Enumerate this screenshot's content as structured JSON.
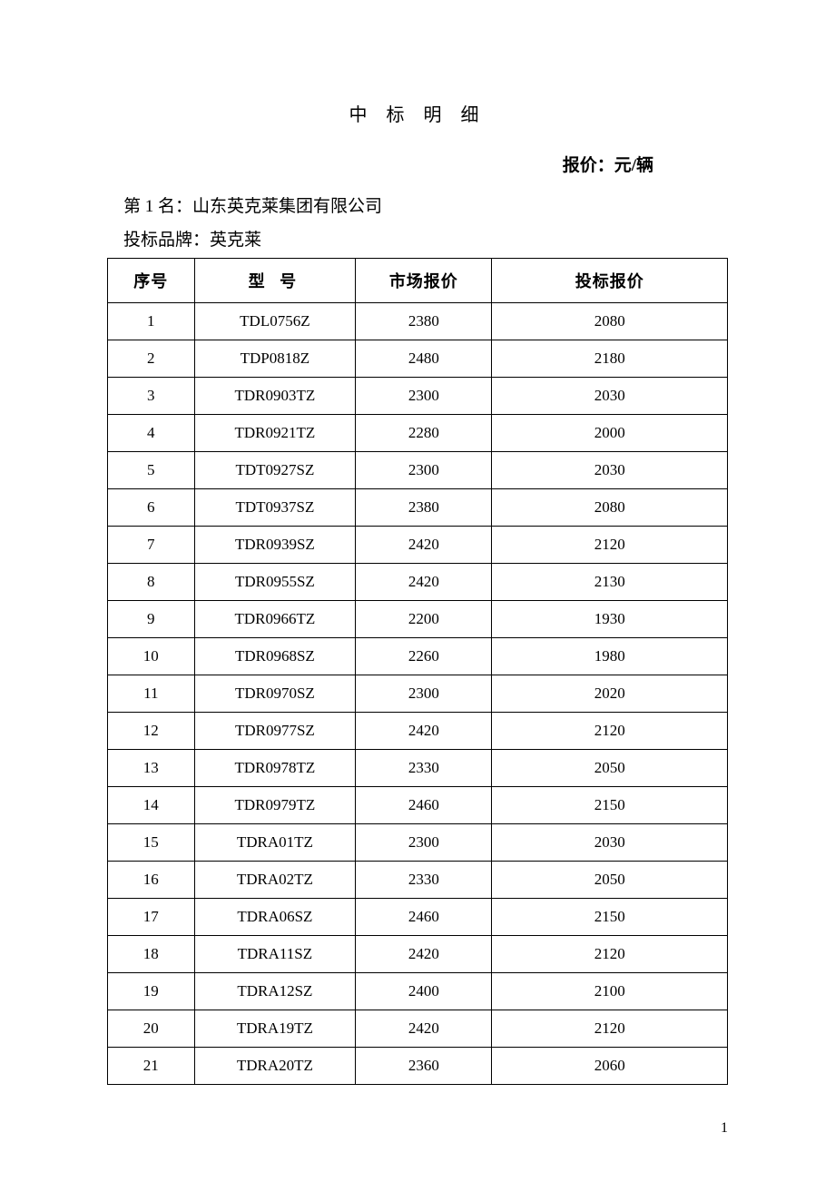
{
  "document": {
    "title": "中 标 明 细",
    "unit_label": "报价：元/辆",
    "rank_line": "第 1 名：山东英克莱集团有限公司",
    "brand_line": "投标品牌：英克莱",
    "page_number": "1"
  },
  "table": {
    "type": "table",
    "columns": {
      "seq": "序号",
      "model": "型 号",
      "market_price": "市场报价",
      "bid_price": "投标报价"
    },
    "column_widths_pct": [
      14,
      26,
      22,
      38
    ],
    "border_color": "#000000",
    "background_color": "#ffffff",
    "header_font_weight": "bold",
    "header_fontsize": 18,
    "cell_fontsize": 17,
    "rows": [
      {
        "seq": "1",
        "model": "TDL0756Z",
        "market": "2380",
        "bid": "2080"
      },
      {
        "seq": "2",
        "model": "TDP0818Z",
        "market": "2480",
        "bid": "2180"
      },
      {
        "seq": "3",
        "model": "TDR0903TZ",
        "market": "2300",
        "bid": "2030"
      },
      {
        "seq": "4",
        "model": "TDR0921TZ",
        "market": "2280",
        "bid": "2000"
      },
      {
        "seq": "5",
        "model": "TDT0927SZ",
        "market": "2300",
        "bid": "2030"
      },
      {
        "seq": "6",
        "model": "TDT0937SZ",
        "market": "2380",
        "bid": "2080"
      },
      {
        "seq": "7",
        "model": "TDR0939SZ",
        "market": "2420",
        "bid": "2120"
      },
      {
        "seq": "8",
        "model": "TDR0955SZ",
        "market": "2420",
        "bid": "2130"
      },
      {
        "seq": "9",
        "model": "TDR0966TZ",
        "market": "2200",
        "bid": "1930"
      },
      {
        "seq": "10",
        "model": "TDR0968SZ",
        "market": "2260",
        "bid": "1980"
      },
      {
        "seq": "11",
        "model": "TDR0970SZ",
        "market": "2300",
        "bid": "2020"
      },
      {
        "seq": "12",
        "model": "TDR0977SZ",
        "market": "2420",
        "bid": "2120"
      },
      {
        "seq": "13",
        "model": "TDR0978TZ",
        "market": "2330",
        "bid": "2050"
      },
      {
        "seq": "14",
        "model": "TDR0979TZ",
        "market": "2460",
        "bid": "2150"
      },
      {
        "seq": "15",
        "model": "TDRA01TZ",
        "market": "2300",
        "bid": "2030"
      },
      {
        "seq": "16",
        "model": "TDRA02TZ",
        "market": "2330",
        "bid": "2050"
      },
      {
        "seq": "17",
        "model": "TDRA06SZ",
        "market": "2460",
        "bid": "2150"
      },
      {
        "seq": "18",
        "model": "TDRA11SZ",
        "market": "2420",
        "bid": "2120"
      },
      {
        "seq": "19",
        "model": "TDRA12SZ",
        "market": "2400",
        "bid": "2100"
      },
      {
        "seq": "20",
        "model": "TDRA19TZ",
        "market": "2420",
        "bid": "2120"
      },
      {
        "seq": "21",
        "model": "TDRA20TZ",
        "market": "2360",
        "bid": "2060"
      }
    ]
  }
}
